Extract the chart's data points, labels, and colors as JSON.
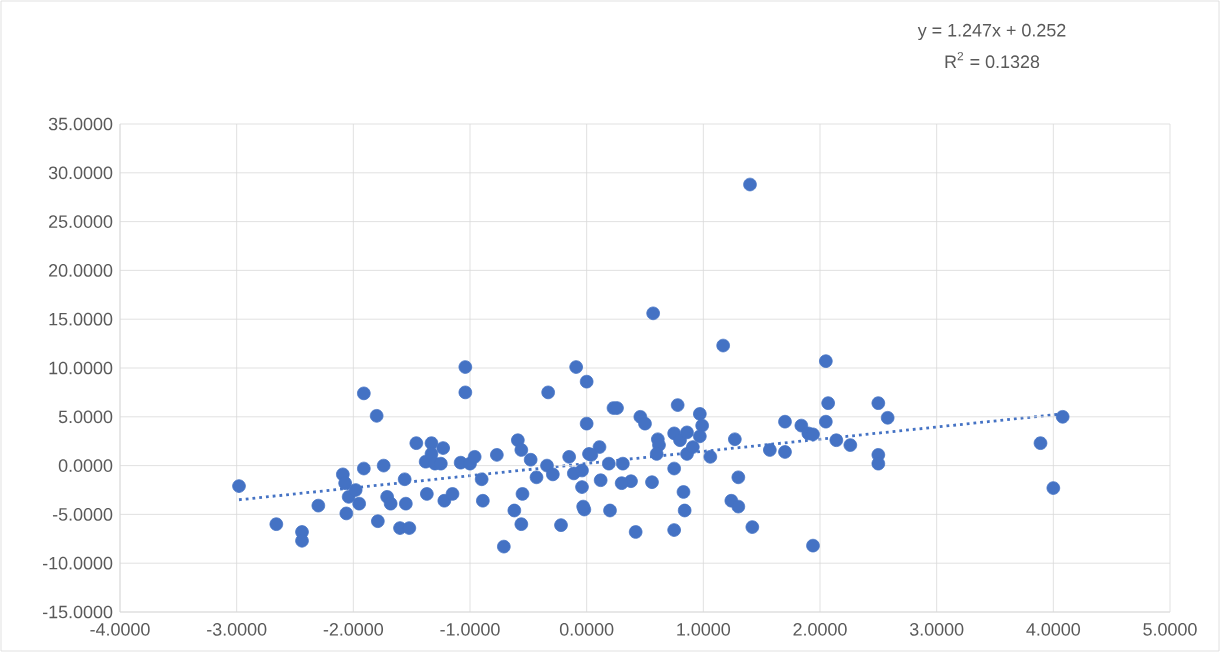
{
  "chart_data": {
    "type": "scatter",
    "xlim": [
      -4,
      5
    ],
    "ylim": [
      -15,
      35
    ],
    "xticks": [
      {
        "value": -4,
        "label": "-4.0000"
      },
      {
        "value": -3,
        "label": "-3.0000"
      },
      {
        "value": -2,
        "label": "-2.0000"
      },
      {
        "value": -1,
        "label": "-1.0000"
      },
      {
        "value": 0,
        "label": "0.0000"
      },
      {
        "value": 1,
        "label": "1.0000"
      },
      {
        "value": 2,
        "label": "2.0000"
      },
      {
        "value": 3,
        "label": "3.0000"
      },
      {
        "value": 4,
        "label": "4.0000"
      },
      {
        "value": 5,
        "label": "5.0000"
      }
    ],
    "yticks": [
      {
        "value": -15,
        "label": "-15.0000"
      },
      {
        "value": -10,
        "label": "-10.0000"
      },
      {
        "value": -5,
        "label": "-5.0000"
      },
      {
        "value": 0,
        "label": "0.0000"
      },
      {
        "value": 5,
        "label": "5.0000"
      },
      {
        "value": 10,
        "label": "10.0000"
      },
      {
        "value": 15,
        "label": "15.0000"
      },
      {
        "value": 20,
        "label": "20.0000"
      },
      {
        "value": 25,
        "label": "25.0000"
      },
      {
        "value": 30,
        "label": "30.0000"
      },
      {
        "value": 35,
        "label": "35.0000"
      }
    ],
    "grid": true,
    "annotations": [
      "y = 1.247x + 0.252",
      "R$^{2}$ = 0.1328"
    ],
    "series": [
      {
        "type": "scatter",
        "color": "#4472c4",
        "marker": "circle",
        "x": [
          -2.98,
          -2.66,
          -2.44,
          -2.44,
          -2.3,
          -2.09,
          -2.07,
          -2.04,
          -2.06,
          -1.98,
          -1.95,
          -1.91,
          -1.91,
          -1.8,
          -1.79,
          -1.74,
          -1.71,
          -1.68,
          -1.6,
          -1.52,
          -1.56,
          -1.55,
          -1.46,
          -1.38,
          -1.37,
          -1.33,
          -1.33,
          -1.3,
          -1.23,
          -1.25,
          -1.22,
          -1.15,
          -1.04,
          -1.04,
          -1.08,
          -1.0,
          -0.96,
          -0.9,
          -0.89,
          -0.77,
          -0.71,
          -0.59,
          -0.56,
          -0.55,
          -0.56,
          -0.62,
          -0.48,
          -0.43,
          -0.33,
          -0.34,
          -0.29,
          -0.22,
          -0.15,
          -0.09,
          0.0,
          0.0,
          -0.11,
          -0.04,
          -0.02,
          0.02,
          0.57,
          1.17,
          0.23,
          0.26,
          0.46,
          0.5,
          0.61,
          0.62,
          0.6,
          0.78,
          0.75,
          0.8,
          0.86,
          0.86,
          0.97,
          0.99,
          0.97,
          0.91,
          1.06,
          0.75,
          0.56,
          0.38,
          0.3,
          0.31,
          0.19,
          0.11,
          0.04,
          0.12,
          -0.04,
          -0.03,
          0.2,
          0.42,
          0.75,
          0.83,
          0.84,
          1.27,
          1.3,
          1.24,
          1.3,
          1.42,
          1.57,
          1.7,
          1.7,
          1.84,
          1.9,
          1.94,
          1.94,
          2.05,
          2.05,
          2.07,
          2.14,
          2.26,
          2.5,
          2.58,
          2.5,
          2.5,
          3.89,
          4.08,
          4.0,
          1.4
        ],
        "values": [
          -2.1,
          -6.0,
          -6.8,
          -7.7,
          -4.1,
          -0.9,
          -1.8,
          -3.2,
          -4.9,
          -2.5,
          -3.9,
          7.4,
          -0.3,
          5.1,
          -5.7,
          0.0,
          -3.2,
          -3.9,
          -6.4,
          -6.4,
          -1.4,
          -3.9,
          2.3,
          0.4,
          -2.9,
          2.3,
          1.2,
          0.2,
          1.8,
          0.2,
          -3.6,
          -2.9,
          10.1,
          7.5,
          0.3,
          0.2,
          0.9,
          -1.4,
          -3.6,
          1.1,
          -8.3,
          2.6,
          1.6,
          -2.9,
          -6.0,
          -4.6,
          0.6,
          -1.2,
          7.5,
          0.0,
          -0.9,
          -6.1,
          0.9,
          10.1,
          8.6,
          4.3,
          -0.8,
          -2.2,
          -4.5,
          1.2,
          15.6,
          12.3,
          5.9,
          5.9,
          5.0,
          4.3,
          2.7,
          2.1,
          1.2,
          6.2,
          3.3,
          2.6,
          3.4,
          1.2,
          5.3,
          4.1,
          3.0,
          1.9,
          0.9,
          -0.3,
          -1.7,
          -1.6,
          -1.8,
          0.2,
          0.2,
          1.9,
          1.1,
          -1.5,
          -0.5,
          -4.2,
          -4.6,
          -6.8,
          -6.6,
          -2.7,
          -4.6,
          2.7,
          -1.2,
          -3.6,
          -4.2,
          -6.3,
          1.6,
          1.4,
          4.5,
          4.1,
          3.3,
          3.2,
          -8.2,
          10.7,
          4.5,
          6.4,
          2.6,
          2.1,
          6.4,
          4.9,
          1.1,
          0.2,
          2.3,
          5.0,
          -2.3,
          28.8
        ]
      },
      {
        "type": "line",
        "color": "#4472c4",
        "marker": "none",
        "line_style": "dotted",
        "x": [
          -2.98,
          4.08
        ],
        "values": [
          -3.5,
          5.3
        ]
      }
    ]
  }
}
